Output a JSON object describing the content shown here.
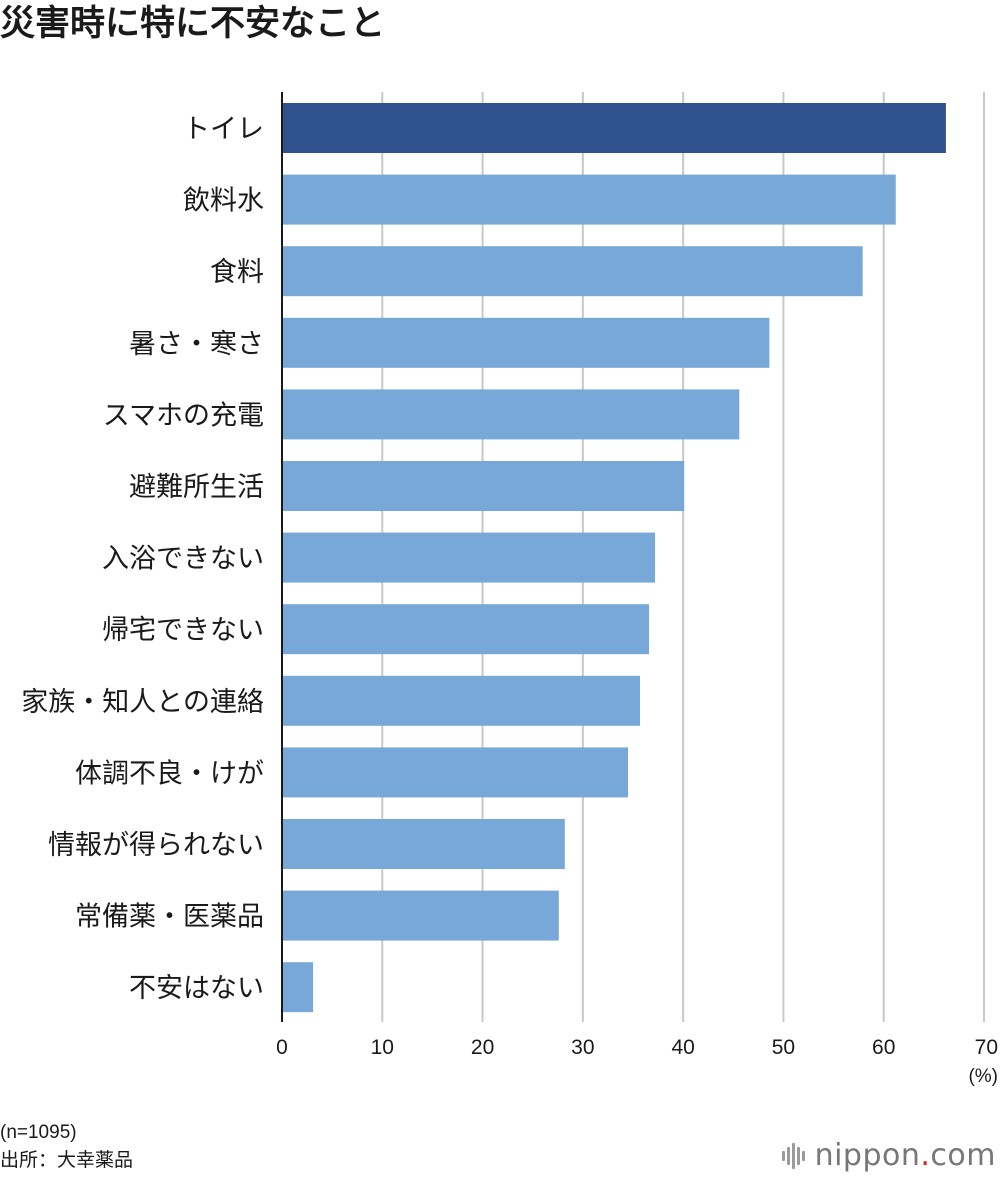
{
  "title": "災害時に特に不安なこと",
  "chart_data": {
    "type": "bar",
    "orientation": "horizontal",
    "categories": [
      "トイレ",
      "飲料水",
      "食料",
      "暑さ・寒さ",
      "スマホの充電",
      "避難所生活",
      "入浴できない",
      "帰宅できない",
      "家族・知人との連絡",
      "体調不良・けが",
      "情報が得られない",
      "常備薬・医薬品",
      "不安はない"
    ],
    "values": [
      66.2,
      61.2,
      57.9,
      48.6,
      45.6,
      40.1,
      37.2,
      36.6,
      35.7,
      34.5,
      28.2,
      27.6,
      3.1
    ],
    "highlight_index": 0,
    "colors": {
      "highlight": "#2f528f",
      "default": "#77a8d8",
      "grid": "#c8c8c8",
      "axis": "#1a1a1a"
    },
    "xlim": [
      0,
      70
    ],
    "xticks": [
      "0",
      "10",
      "20",
      "30",
      "40",
      "50",
      "60",
      "70"
    ],
    "xunit": "(%)",
    "grid": true,
    "legend": "none"
  },
  "footer": {
    "sample": "(n=1095)",
    "source": "出所：大幸薬品"
  },
  "logo": {
    "name": "nippon",
    "dot": ".",
    "suffix": "com"
  }
}
